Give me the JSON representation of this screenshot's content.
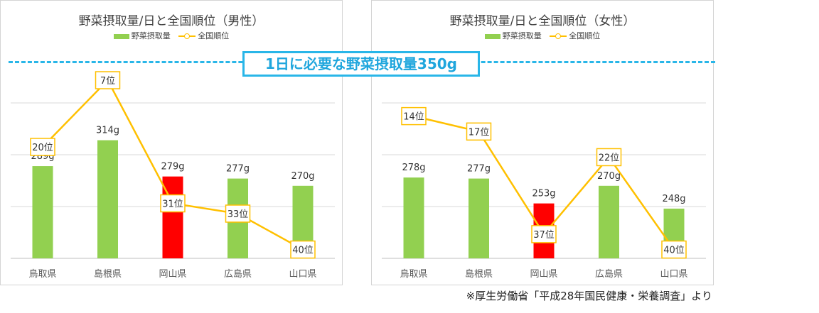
{
  "chart_data": [
    {
      "type": "bar",
      "title": "野菜摂取量/日と全国順位（男性）",
      "categories": [
        "鳥取県",
        "島根県",
        "岡山県",
        "広島県",
        "山口県"
      ],
      "series": [
        {
          "name": "野菜摂取量",
          "type": "bar",
          "values": [
            289,
            314,
            279,
            277,
            270
          ],
          "value_labels": [
            "289g",
            "314g",
            "279g",
            "277g",
            "270g"
          ]
        },
        {
          "name": "全国順位",
          "type": "line",
          "values": [
            20,
            7,
            31,
            33,
            40
          ],
          "value_labels": [
            "20位",
            "7位",
            "31位",
            "33位",
            "40位"
          ]
        }
      ],
      "highlight_index": 2,
      "ylim": [
        200,
        350
      ],
      "grid": true,
      "legend": "top"
    },
    {
      "type": "bar",
      "title": "野菜摂取量/日と全国順位（女性）",
      "categories": [
        "鳥取県",
        "島根県",
        "岡山県",
        "広島県",
        "山口県"
      ],
      "series": [
        {
          "name": "野菜摂取量",
          "type": "bar",
          "values": [
            278,
            277,
            253,
            270,
            248
          ],
          "value_labels": [
            "278g",
            "277g",
            "253g",
            "270g",
            "248g"
          ]
        },
        {
          "name": "全国順位",
          "type": "line",
          "values": [
            14,
            17,
            37,
            22,
            40
          ],
          "value_labels": [
            "14位",
            "17位",
            "37位",
            "22位",
            "40位"
          ]
        }
      ],
      "highlight_index": 2,
      "ylim": [
        200,
        350
      ],
      "grid": true,
      "legend": "top"
    }
  ],
  "banner": "1日に必要な野菜摂取量350g",
  "source_note": "※厚生労働省「平成28年国民健康・栄養調査」より",
  "colors": {
    "bar": "#92d050",
    "highlight_bar": "#ff0000",
    "line": "#ffc000",
    "target_line": "#29b6e8"
  }
}
